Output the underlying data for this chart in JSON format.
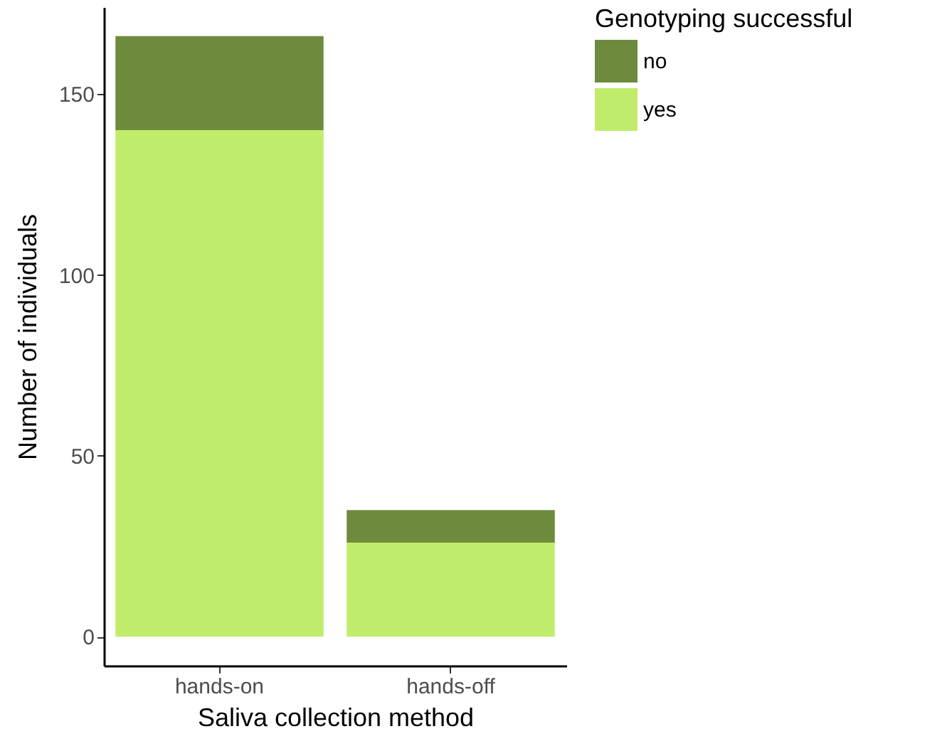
{
  "chart_data": {
    "type": "bar",
    "stacked": true,
    "xlabel": "Saliva collection method",
    "ylabel": "Number of individuals",
    "legend_title": "Genotyping successful",
    "legend": "right",
    "categories": [
      "hands-on",
      "hands-off"
    ],
    "series": [
      {
        "name": "yes",
        "color": "#bfed6b",
        "values": [
          140,
          26
        ]
      },
      {
        "name": "no",
        "color": "#6e8b3d",
        "values": [
          26,
          9
        ]
      }
    ],
    "ylim": [
      -8,
      174
    ],
    "yticks": [
      0,
      50,
      100,
      150
    ],
    "grid": false
  }
}
